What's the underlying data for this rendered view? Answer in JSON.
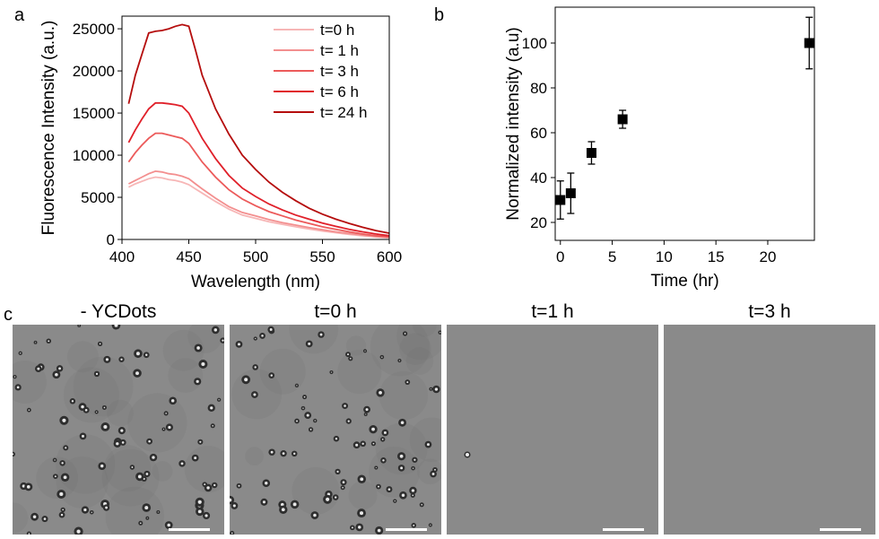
{
  "panel_labels": {
    "a": "a",
    "b": "b",
    "c": "c"
  },
  "colors": {
    "t0": "#f7b6b6",
    "t1": "#f38f8f",
    "t3": "#ec5a5a",
    "t6": "#e0202a",
    "t24": "#b50d0d",
    "marker": "#000000",
    "micro_bg": "#8a8a8a",
    "scalebar": "#ffffff"
  },
  "chart_data": [
    {
      "type": "line",
      "title": "",
      "xlabel": "Wavelength (nm)",
      "ylabel": "Fluorescence Intensity (a.u.)",
      "xlim": [
        400,
        600
      ],
      "ylim": [
        0,
        26500
      ],
      "xticks": [
        400,
        450,
        500,
        550,
        600
      ],
      "yticks": [
        0,
        5000,
        10000,
        15000,
        20000,
        25000
      ],
      "legend_position": "top-right",
      "x": [
        405,
        410,
        415,
        420,
        425,
        430,
        435,
        440,
        445,
        450,
        455,
        460,
        470,
        480,
        490,
        500,
        510,
        520,
        530,
        540,
        550,
        560,
        570,
        580,
        590,
        600
      ],
      "series": [
        {
          "name": "t=0 h",
          "color_key": "t0",
          "values": [
            6200,
            6600,
            6900,
            7200,
            7400,
            7300,
            7100,
            7000,
            6800,
            6500,
            6000,
            5500,
            4500,
            3600,
            2900,
            2500,
            2100,
            1800,
            1500,
            1250,
            1000,
            800,
            600,
            450,
            300,
            200
          ]
        },
        {
          "name": "t= 1 h",
          "color_key": "t1",
          "values": [
            6600,
            7000,
            7400,
            7800,
            8100,
            8000,
            7800,
            7700,
            7500,
            7200,
            6600,
            6000,
            4900,
            3900,
            3200,
            2800,
            2350,
            2000,
            1700,
            1400,
            1150,
            900,
            700,
            520,
            350,
            240
          ]
        },
        {
          "name": "t= 3 h",
          "color_key": "t3",
          "values": [
            9200,
            10300,
            11200,
            12000,
            12600,
            12600,
            12400,
            12200,
            12000,
            11400,
            10300,
            9200,
            7400,
            5900,
            4800,
            4000,
            3300,
            2800,
            2300,
            1900,
            1500,
            1200,
            900,
            650,
            450,
            300
          ]
        },
        {
          "name": "t= 6 h",
          "color_key": "t6",
          "values": [
            11500,
            13000,
            14300,
            15500,
            16200,
            16200,
            16100,
            16000,
            15800,
            15000,
            13500,
            12000,
            9600,
            7600,
            6100,
            5100,
            4200,
            3500,
            2900,
            2400,
            1950,
            1550,
            1200,
            900,
            650,
            450
          ]
        },
        {
          "name": "t= 24 h",
          "color_key": "t24",
          "values": [
            16100,
            19500,
            22000,
            24500,
            24700,
            24800,
            25000,
            25300,
            25500,
            25300,
            22500,
            19500,
            15500,
            12500,
            10000,
            8300,
            6800,
            5600,
            4600,
            3700,
            3000,
            2400,
            1900,
            1450,
            1050,
            750
          ]
        }
      ]
    },
    {
      "type": "scatter",
      "title": "",
      "xlabel": "Time (hr)",
      "ylabel": "Normalized intensity (a.u)",
      "xlim": [
        -0.5,
        24.5
      ],
      "ylim": [
        12,
        116
      ],
      "xticks": [
        0,
        5,
        10,
        15,
        20
      ],
      "yticks": [
        20,
        40,
        60,
        80,
        100
      ],
      "x": [
        0,
        1,
        3,
        6,
        24
      ],
      "y": [
        30,
        33,
        51,
        66,
        100
      ],
      "yerr": [
        8.5,
        9,
        5,
        4,
        11.5
      ]
    }
  ],
  "micrographs": [
    {
      "title": "- YCDots"
    },
    {
      "title": "t=0 h"
    },
    {
      "title": "t=1 h"
    },
    {
      "title": "t=3 h"
    }
  ]
}
